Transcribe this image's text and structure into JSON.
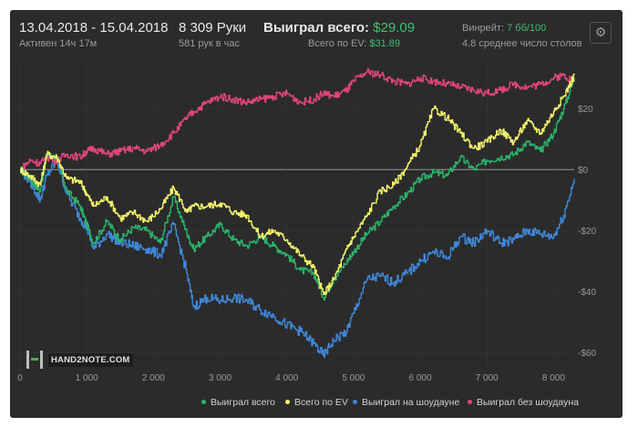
{
  "header": {
    "date_range": "13.04.2018 - 15.04.2018",
    "active": "Активен 14ч 17м",
    "hands": "8 309 Руки",
    "hands_per_hour": "581 рук в час",
    "won_label": "Выиграл всего:",
    "won_value": "$29.09",
    "ev_label": "Всего по EV:",
    "ev_value": "$31.89",
    "winrate_label": "Винрейт:",
    "winrate_value": "7 бб/100",
    "tables": "4.8 среднее число столов",
    "settings_icon": "gear-icon"
  },
  "logo": {
    "text": "HAND2NOTE.COM"
  },
  "colors": {
    "green": "#2bb36a",
    "yellow": "#f3f36a",
    "blue": "#3f87d9",
    "pink": "#e0447c",
    "zero_line": "#9a9a9a",
    "grid": "#3a3a3a"
  },
  "chart_data": {
    "type": "line",
    "xlim": [
      0,
      8309
    ],
    "ylim": [
      -65,
      35
    ],
    "x_ticks": [
      0,
      1000,
      2000,
      3000,
      4000,
      5000,
      6000,
      7000,
      8000
    ],
    "x_tick_labels": [
      "0",
      "1 000",
      "2 000",
      "3 000",
      "4 000",
      "5 000",
      "6 000",
      "7 000",
      "8 000"
    ],
    "y_ticks": [
      20,
      0,
      -20,
      -40,
      -60
    ],
    "y_tick_labels": [
      "$20",
      "$0",
      "-$20",
      "-$40",
      "-$60"
    ],
    "legend_position": "bottom-right",
    "series": [
      {
        "name": "Выиграл всего",
        "color": "#2bb36a",
        "x": [
          0,
          150,
          300,
          400,
          550,
          700,
          900,
          1000,
          1100,
          1300,
          1500,
          1700,
          1900,
          2100,
          2300,
          2500,
          2600,
          2800,
          3000,
          3200,
          3400,
          3600,
          3800,
          4000,
          4200,
          4400,
          4550,
          4700,
          4900,
          5000,
          5200,
          5400,
          5600,
          5800,
          6000,
          6200,
          6400,
          6600,
          6800,
          7000,
          7200,
          7400,
          7600,
          7800,
          8000,
          8150,
          8309
        ],
        "y": [
          0,
          -3,
          -7,
          5,
          4,
          -7,
          -12,
          -18,
          -24,
          -17,
          -23,
          -19,
          -20,
          -24,
          -9,
          -21,
          -26,
          -22,
          -18,
          -23,
          -25,
          -22,
          -25,
          -28,
          -33,
          -34,
          -42,
          -36,
          -30,
          -27,
          -21,
          -17,
          -12,
          -8,
          -3,
          -1,
          -2,
          4,
          0,
          3,
          4,
          5,
          9,
          6,
          12,
          20,
          30
        ]
      },
      {
        "name": "Всего по EV",
        "color": "#f3f36a",
        "x": [
          0,
          150,
          300,
          400,
          550,
          700,
          900,
          1000,
          1100,
          1300,
          1500,
          1700,
          1900,
          2100,
          2300,
          2500,
          2600,
          2800,
          3000,
          3200,
          3400,
          3600,
          3800,
          4000,
          4200,
          4400,
          4550,
          4700,
          4900,
          5000,
          5200,
          5400,
          5600,
          5800,
          6000,
          6200,
          6400,
          6600,
          6800,
          7000,
          7200,
          7400,
          7600,
          7800,
          8000,
          8150,
          8309
        ],
        "y": [
          0,
          -2,
          -5,
          5,
          4,
          -3,
          -4,
          -8,
          -12,
          -9,
          -16,
          -14,
          -17,
          -13,
          -6,
          -14,
          -12,
          -12,
          -11,
          -14,
          -15,
          -22,
          -20,
          -23,
          -28,
          -32,
          -41,
          -36,
          -26,
          -22,
          -15,
          -7,
          -5,
          1,
          8,
          20,
          17,
          12,
          7,
          9,
          13,
          9,
          16,
          12,
          19,
          24,
          31
        ]
      },
      {
        "name": "Выиграл на шоудауне",
        "color": "#3f87d9",
        "x": [
          0,
          150,
          300,
          400,
          550,
          700,
          900,
          1000,
          1100,
          1300,
          1500,
          1700,
          1900,
          2100,
          2300,
          2500,
          2600,
          2800,
          3000,
          3200,
          3400,
          3600,
          3800,
          4000,
          4200,
          4400,
          4550,
          4700,
          4900,
          5000,
          5200,
          5400,
          5600,
          5800,
          6000,
          6200,
          6400,
          6600,
          6800,
          7000,
          7200,
          7400,
          7600,
          7800,
          8000,
          8150,
          8309
        ],
        "y": [
          0,
          -4,
          -10,
          -2,
          3,
          -8,
          -16,
          -19,
          -26,
          -21,
          -24,
          -25,
          -26,
          -28,
          -18,
          -34,
          -45,
          -42,
          -43,
          -42,
          -43,
          -46,
          -48,
          -51,
          -53,
          -57,
          -61,
          -56,
          -53,
          -47,
          -36,
          -35,
          -37,
          -34,
          -30,
          -27,
          -29,
          -22,
          -24,
          -20,
          -24,
          -23,
          -20,
          -21,
          -22,
          -15,
          -3
        ]
      },
      {
        "name": "Выиграл без шоудауна",
        "color": "#e0447c",
        "x": [
          0,
          150,
          300,
          400,
          550,
          700,
          900,
          1000,
          1100,
          1300,
          1500,
          1700,
          1900,
          2100,
          2300,
          2500,
          2600,
          2800,
          3000,
          3200,
          3400,
          3600,
          3800,
          4000,
          4200,
          4400,
          4550,
          4700,
          4900,
          5000,
          5200,
          5400,
          5600,
          5800,
          6000,
          6200,
          6400,
          6600,
          6800,
          7000,
          7200,
          7400,
          7600,
          7800,
          8000,
          8150,
          8309
        ],
        "y": [
          0,
          3,
          2,
          4,
          3,
          5,
          4,
          6,
          7,
          5,
          6,
          7,
          6,
          8,
          12,
          17,
          19,
          22,
          24,
          23,
          22,
          23,
          24,
          25,
          22,
          23,
          25,
          24,
          26,
          29,
          32,
          31,
          29,
          28,
          30,
          29,
          28,
          27,
          26,
          25,
          26,
          28,
          27,
          28,
          30,
          31,
          29
        ]
      }
    ]
  }
}
